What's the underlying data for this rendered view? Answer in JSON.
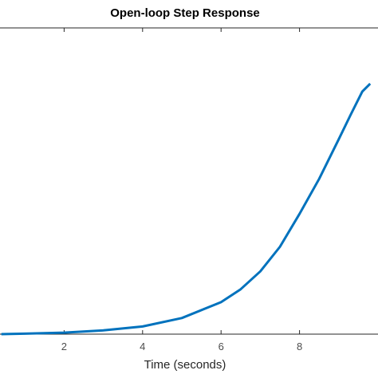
{
  "chart_data": {
    "type": "line",
    "title": "Open-loop Step Response",
    "xlabel": "Time (seconds)",
    "ylabel": "",
    "xlim": [
      0.4,
      9.8
    ],
    "ylim": [
      0,
      100
    ],
    "grid": false,
    "xticks": [
      2,
      4,
      6,
      8
    ],
    "series": [
      {
        "color": "#0072bd",
        "x": [
          0.4,
          1.0,
          2.0,
          3.0,
          4.0,
          5.0,
          6.0,
          6.5,
          7.0,
          7.5,
          8.0,
          8.5,
          9.0,
          9.3,
          9.6,
          9.8
        ],
        "y": [
          0.0,
          0.2,
          0.6,
          1.5,
          3.1,
          6.5,
          12.9,
          18.1,
          25.3,
          35.2,
          48.5,
          62.6,
          78.6,
          88.4,
          97.8,
          101.0
        ]
      }
    ]
  }
}
